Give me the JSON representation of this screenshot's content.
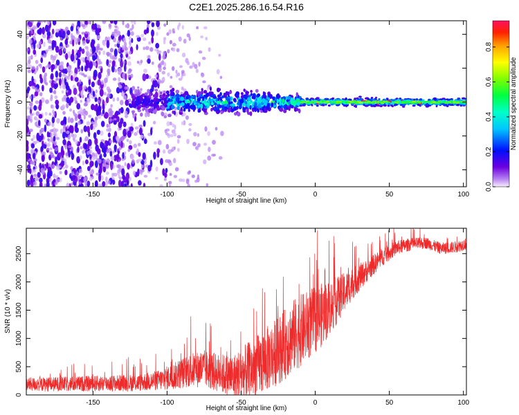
{
  "title": "C2E1.2025.286.16.54.R16",
  "colors": {
    "snr_line": "#ee2a2a",
    "frame": "#000000",
    "background": "#ffffff"
  },
  "chart_data": [
    {
      "type": "heatmap",
      "title": "",
      "xlabel": "Height of straight line (km)",
      "ylabel": "Frequency (Hz)",
      "xlim": [
        -195,
        102
      ],
      "ylim": [
        -50,
        48
      ],
      "xticks": [
        -150,
        -100,
        -50,
        0,
        50,
        100
      ],
      "yticks": [
        -40,
        -20,
        0,
        20,
        40
      ],
      "grid": false,
      "colorbar": {
        "label": "Normalized spectral amplitude",
        "range": [
          0,
          0.95
        ],
        "ticks": [
          "0.0",
          "0.2",
          "0.4",
          "0.6",
          "0.8"
        ],
        "tick_values": [
          0.0,
          0.2,
          0.4,
          0.6,
          0.8
        ],
        "colormap": "rainbow"
      },
      "features": [
        {
          "name": "noise",
          "x_range": [
            -195,
            -100
          ],
          "freq_range": [
            -50,
            48
          ],
          "amplitude": 0.08
        },
        {
          "name": "signal band",
          "x_range": [
            -125,
            102
          ],
          "center_freq": 0,
          "half_width_hz": [
            8,
            2
          ],
          "amplitude_peak": 0.95
        }
      ]
    },
    {
      "type": "line",
      "title": "",
      "xlabel": "Height of straight line (km)",
      "ylabel": "SNR (10 * v/v)",
      "xlim": [
        -195,
        102
      ],
      "ylim": [
        0,
        2950
      ],
      "xticks": [
        -150,
        -100,
        -50,
        0,
        50,
        100
      ],
      "yticks": [
        0,
        500,
        1000,
        1500,
        2000,
        2500
      ],
      "grid": false,
      "series": [
        {
          "name": "SNR",
          "x": [
            -195,
            -180,
            -160,
            -140,
            -120,
            -105,
            -95,
            -85,
            -75,
            -65,
            -55,
            -45,
            -35,
            -25,
            -15,
            -5,
            5,
            15,
            25,
            35,
            45,
            55,
            65,
            75,
            85,
            95,
            101
          ],
          "envelope": [
            200,
            200,
            210,
            220,
            230,
            280,
            360,
            460,
            500,
            420,
            360,
            470,
            640,
            850,
            1100,
            1300,
            1480,
            1720,
            2000,
            2220,
            2450,
            2620,
            2680,
            2700,
            2600,
            2630,
            2680
          ],
          "spread": [
            150,
            160,
            170,
            180,
            190,
            230,
            300,
            380,
            420,
            430,
            520,
            650,
            720,
            760,
            820,
            780,
            700,
            520,
            360,
            250,
            200,
            160,
            140,
            130,
            130,
            130,
            130
          ]
        }
      ]
    }
  ]
}
